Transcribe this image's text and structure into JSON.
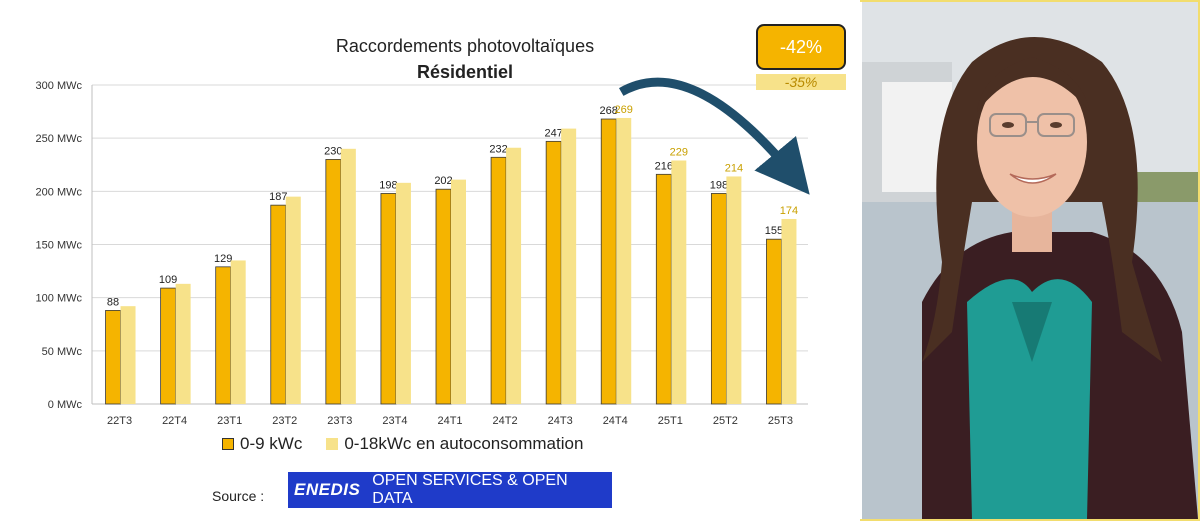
{
  "title": "Raccordements photovoltaïques",
  "subtitle": "Résidentiel",
  "badge_main": "-42%",
  "badge_sub": "-35%",
  "source_label": "Source :",
  "source_logo": "ENEDIS",
  "source_text": "OPEN SERVICES & OPEN DATA",
  "colors": {
    "series1": "#f5b400",
    "series2": "#f7e28a",
    "arrow": "#1f4e6b",
    "label2": "#c9a000"
  },
  "chart_data": {
    "type": "bar",
    "title": "Raccordements photovoltaïques",
    "subtitle": "Résidentiel",
    "categories": [
      "22T3",
      "22T4",
      "23T1",
      "23T2",
      "23T3",
      "23T4",
      "24T1",
      "24T2",
      "24T3",
      "24T4",
      "25T1",
      "25T2",
      "25T3"
    ],
    "yticks": [
      "0 MWc",
      "50 MWc",
      "100 MWc",
      "150 MWc",
      "200 MWc",
      "250 MWc",
      "300 MWc"
    ],
    "ylim": [
      0,
      300
    ],
    "legend_position": "bottom",
    "series": [
      {
        "name": "0-9 kWc",
        "values": [
          88,
          109,
          129,
          187,
          230,
          198,
          202,
          232,
          247,
          268,
          216,
          198,
          155
        ],
        "labels": [
          "88",
          "109",
          "129",
          "187",
          "230",
          "198",
          "202",
          "232",
          "247",
          "268",
          "216",
          "198",
          "155"
        ]
      },
      {
        "name": "0-18kWc en autoconsommation",
        "values": [
          92,
          113,
          135,
          195,
          240,
          208,
          211,
          241,
          259,
          269,
          229,
          214,
          174
        ],
        "labels": [
          "",
          "",
          "",
          "",
          "",
          "",
          "",
          "",
          "",
          "269",
          "229",
          "214",
          "174"
        ]
      }
    ]
  }
}
